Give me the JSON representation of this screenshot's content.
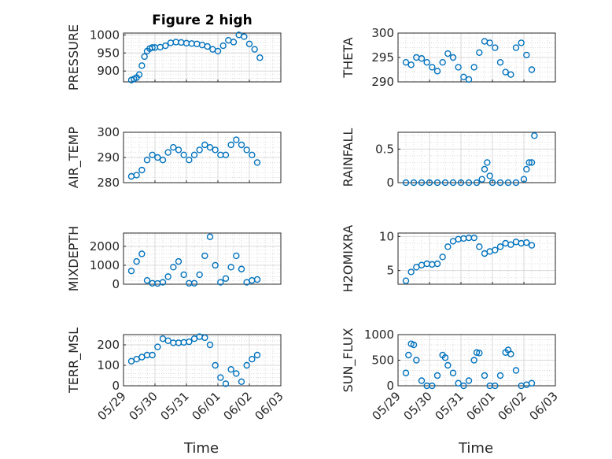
{
  "figure_title": "Figure 2 high",
  "xlabel": "Time",
  "x_ticks": [
    "05/29",
    "05/30",
    "05/31",
    "06/01",
    "06/02",
    "06/03"
  ],
  "marker_color": "#0072BD",
  "chart_data": [
    {
      "type": "scatter",
      "name": "PRESSURE",
      "ylabel": "PRESSURE",
      "xlim": [
        "05/29 00:00",
        "06/03 00:00"
      ],
      "ylim": [
        870,
        1005
      ],
      "yticks": [
        900,
        950,
        1000
      ],
      "grid": true,
      "x": [
        "05/29 06:00",
        "05/29 08:00",
        "05/29 10:00",
        "05/29 12:00",
        "05/29 14:00",
        "05/29 16:00",
        "05/29 18:00",
        "05/29 20:00",
        "05/29 22:00",
        "05/30 00:00",
        "05/30 04:00",
        "05/30 08:00",
        "05/30 12:00",
        "05/30 16:00",
        "05/30 20:00",
        "05/31 00:00",
        "05/31 04:00",
        "05/31 08:00",
        "05/31 12:00",
        "05/31 16:00",
        "05/31 20:00",
        "06/01 00:00",
        "06/01 04:00",
        "06/01 08:00",
        "06/01 12:00",
        "06/01 16:00",
        "06/01 20:00",
        "06/02 00:00",
        "06/02 04:00",
        "06/02 08:00"
      ],
      "y": [
        875,
        878,
        882,
        890,
        915,
        940,
        955,
        962,
        965,
        965,
        966,
        970,
        978,
        980,
        979,
        977,
        976,
        975,
        972,
        968,
        960,
        955,
        970,
        985,
        980,
        1000,
        995,
        975,
        960,
        937
      ]
    },
    {
      "type": "scatter",
      "name": "THETA",
      "ylabel": "THETA",
      "xlim": [
        "05/29 00:00",
        "06/03 00:00"
      ],
      "ylim": [
        290,
        300
      ],
      "yticks": [
        290,
        295,
        300
      ],
      "grid": true,
      "x": [
        "05/29 06:00",
        "05/29 10:00",
        "05/29 14:00",
        "05/29 18:00",
        "05/29 22:00",
        "05/30 02:00",
        "05/30 06:00",
        "05/30 10:00",
        "05/30 14:00",
        "05/30 18:00",
        "05/30 22:00",
        "05/31 02:00",
        "05/31 06:00",
        "05/31 10:00",
        "05/31 14:00",
        "05/31 18:00",
        "05/31 22:00",
        "06/01 02:00",
        "06/01 06:00",
        "06/01 10:00",
        "06/01 14:00",
        "06/01 18:00",
        "06/01 22:00",
        "06/02 02:00",
        "06/02 06:00"
      ],
      "y": [
        294,
        293.5,
        295,
        294.8,
        294,
        293,
        292.2,
        294,
        295.8,
        295,
        293,
        291,
        290.5,
        293,
        296,
        298.3,
        298,
        297,
        294,
        292,
        291.5,
        297,
        298,
        295.5,
        292.5
      ]
    },
    {
      "type": "scatter",
      "name": "AIR_TEMP",
      "ylabel": "AIR_TEMP",
      "xlim": [
        "05/29 00:00",
        "06/03 00:00"
      ],
      "ylim": [
        280,
        300
      ],
      "yticks": [
        280,
        290,
        300
      ],
      "grid": true,
      "x": [
        "05/29 06:00",
        "05/29 10:00",
        "05/29 14:00",
        "05/29 18:00",
        "05/29 22:00",
        "05/30 02:00",
        "05/30 06:00",
        "05/30 10:00",
        "05/30 14:00",
        "05/30 18:00",
        "05/30 22:00",
        "05/31 02:00",
        "05/31 06:00",
        "05/31 10:00",
        "05/31 14:00",
        "05/31 18:00",
        "05/31 22:00",
        "06/01 02:00",
        "06/01 06:00",
        "06/01 10:00",
        "06/01 14:00",
        "06/01 18:00",
        "06/01 22:00",
        "06/02 02:00",
        "06/02 06:00"
      ],
      "y": [
        282.5,
        283,
        285,
        289,
        291,
        290,
        289,
        292,
        294,
        293,
        291,
        289,
        291,
        293,
        295,
        294,
        293,
        291,
        291,
        295,
        297,
        295,
        293,
        291,
        288
      ]
    },
    {
      "type": "scatter",
      "name": "RAINFALL",
      "ylabel": "RAINFALL",
      "xlim": [
        "05/29 00:00",
        "06/03 00:00"
      ],
      "ylim": [
        0,
        0.75
      ],
      "yticks": [
        0,
        0.5
      ],
      "grid": true,
      "x": [
        "05/29 06:00",
        "05/29 12:00",
        "05/29 18:00",
        "05/30 00:00",
        "05/30 06:00",
        "05/30 12:00",
        "05/30 18:00",
        "05/31 00:00",
        "05/31 06:00",
        "05/31 12:00",
        "05/31 16:00",
        "05/31 18:00",
        "05/31 20:00",
        "05/31 22:00",
        "06/01 00:00",
        "06/01 06:00",
        "06/01 12:00",
        "06/01 18:00",
        "06/02 00:00",
        "06/02 02:00",
        "06/02 04:00",
        "06/02 06:00",
        "06/02 08:00"
      ],
      "y": [
        0,
        0,
        0,
        0,
        0,
        0,
        0,
        0,
        0,
        0,
        0.05,
        0.2,
        0.3,
        0.1,
        0,
        0,
        0,
        0,
        0.05,
        0.2,
        0.3,
        0.3,
        0.7
      ]
    },
    {
      "type": "scatter",
      "name": "MIXDEPTH",
      "ylabel": "MIXDEPTH",
      "xlim": [
        "05/29 00:00",
        "06/03 00:00"
      ],
      "ylim": [
        0,
        2700
      ],
      "yticks": [
        0,
        1000,
        2000
      ],
      "grid": true,
      "x": [
        "05/29 06:00",
        "05/29 10:00",
        "05/29 14:00",
        "05/29 18:00",
        "05/29 22:00",
        "05/30 02:00",
        "05/30 06:00",
        "05/30 10:00",
        "05/30 14:00",
        "05/30 18:00",
        "05/30 22:00",
        "05/31 02:00",
        "05/31 06:00",
        "05/31 10:00",
        "05/31 14:00",
        "05/31 18:00",
        "05/31 22:00",
        "06/01 02:00",
        "06/01 06:00",
        "06/01 10:00",
        "06/01 14:00",
        "06/01 18:00",
        "06/01 22:00",
        "06/02 02:00",
        "06/02 06:00"
      ],
      "y": [
        700,
        1200,
        1600,
        200,
        50,
        40,
        100,
        400,
        900,
        1200,
        500,
        50,
        50,
        500,
        1500,
        2500,
        1000,
        100,
        300,
        900,
        1500,
        800,
        100,
        200,
        250
      ]
    },
    {
      "type": "scatter",
      "name": "H2OMIXRA",
      "ylabel": "H2OMIXRA",
      "xlim": [
        "05/29 00:00",
        "06/03 00:00"
      ],
      "ylim": [
        3,
        10.5
      ],
      "yticks": [
        5,
        10
      ],
      "grid": true,
      "x": [
        "05/29 06:00",
        "05/29 10:00",
        "05/29 14:00",
        "05/29 18:00",
        "05/29 22:00",
        "05/30 02:00",
        "05/30 06:00",
        "05/30 10:00",
        "05/30 14:00",
        "05/30 18:00",
        "05/30 22:00",
        "05/31 02:00",
        "05/31 06:00",
        "05/31 10:00",
        "05/31 14:00",
        "05/31 18:00",
        "05/31 22:00",
        "06/01 02:00",
        "06/01 06:00",
        "06/01 10:00",
        "06/01 14:00",
        "06/01 18:00",
        "06/01 22:00",
        "06/02 02:00",
        "06/02 06:00"
      ],
      "y": [
        3.5,
        4.8,
        5.5,
        5.8,
        6,
        5.9,
        6,
        7,
        8.5,
        9.3,
        9.6,
        9.7,
        9.8,
        9.8,
        8.5,
        7.5,
        7.8,
        8,
        8.5,
        9,
        8.8,
        9.2,
        9,
        9.1,
        8.7
      ]
    },
    {
      "type": "scatter",
      "name": "TERR_MSL",
      "ylabel": "TERR_MSL",
      "xlim": [
        "05/29 00:00",
        "06/03 00:00"
      ],
      "ylim": [
        0,
        250
      ],
      "yticks": [
        0,
        100,
        200
      ],
      "grid": true,
      "x": [
        "05/29 06:00",
        "05/29 10:00",
        "05/29 14:00",
        "05/29 18:00",
        "05/29 22:00",
        "05/30 02:00",
        "05/30 06:00",
        "05/30 10:00",
        "05/30 14:00",
        "05/30 18:00",
        "05/30 22:00",
        "05/31 02:00",
        "05/31 06:00",
        "05/31 10:00",
        "05/31 14:00",
        "05/31 18:00",
        "05/31 22:00",
        "06/01 02:00",
        "06/01 06:00",
        "06/01 10:00",
        "06/01 14:00",
        "06/01 18:00",
        "06/01 22:00",
        "06/02 02:00",
        "06/02 06:00"
      ],
      "y": [
        120,
        130,
        140,
        150,
        150,
        190,
        230,
        220,
        210,
        210,
        212,
        215,
        230,
        240,
        235,
        200,
        100,
        40,
        10,
        80,
        60,
        20,
        100,
        130,
        150
      ]
    },
    {
      "type": "scatter",
      "name": "SUN_FLUX",
      "ylabel": "SUN_FLUX",
      "xlim": [
        "05/29 00:00",
        "06/03 00:00"
      ],
      "ylim": [
        0,
        1000
      ],
      "yticks": [
        0,
        500,
        1000
      ],
      "grid": true,
      "x": [
        "05/29 06:00",
        "05/29 08:00",
        "05/29 10:00",
        "05/29 12:00",
        "05/29 14:00",
        "05/29 18:00",
        "05/29 22:00",
        "05/30 02:00",
        "05/30 06:00",
        "05/30 10:00",
        "05/30 12:00",
        "05/30 14:00",
        "05/30 18:00",
        "05/30 22:00",
        "05/31 02:00",
        "05/31 06:00",
        "05/31 10:00",
        "05/31 12:00",
        "05/31 14:00",
        "05/31 18:00",
        "05/31 22:00",
        "06/01 02:00",
        "06/01 06:00",
        "06/01 10:00",
        "06/01 12:00",
        "06/01 14:00",
        "06/01 18:00",
        "06/01 22:00",
        "06/02 02:00",
        "06/02 06:00"
      ],
      "y": [
        250,
        600,
        820,
        800,
        500,
        100,
        0,
        0,
        200,
        600,
        550,
        400,
        250,
        50,
        0,
        100,
        500,
        650,
        640,
        200,
        0,
        0,
        200,
        650,
        700,
        620,
        300,
        0,
        20,
        50
      ]
    }
  ]
}
